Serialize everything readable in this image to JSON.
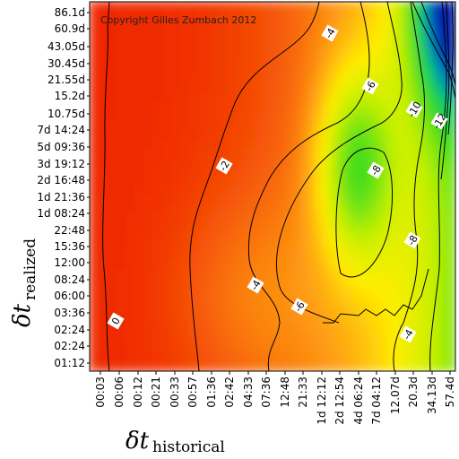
{
  "chart_data": {
    "type": "heatmap",
    "copyright": "Copyright Gilles Zumbach 2012",
    "xlabel": {
      "symbol": "δt",
      "subscript": "historical"
    },
    "ylabel": {
      "symbol": "δt",
      "subscript": "realized"
    },
    "x_ticks": [
      "00:03",
      "00:06",
      "00:12",
      "00:21",
      "00:33",
      "00:57",
      "01:36",
      "02:42",
      "04:33",
      "07:36",
      "12:48",
      "21:33",
      "1d 12:12",
      "2d 12:54",
      "4d 06:24",
      "7d 04:12",
      "12.07d",
      "20.3d",
      "34.13d",
      "57.4d"
    ],
    "y_ticks": [
      "86.1d",
      "60.9d",
      "43.05d",
      "30.45d",
      "21.55d",
      "15.2d",
      "10.75d",
      "7d 14:24",
      "5d 09:36",
      "3d 19:12",
      "2d 16:48",
      "1d 21:36",
      "1d 08:24",
      "22:48",
      "15:36",
      "12:00",
      "08:24",
      "06:00",
      "03:36",
      "02:24",
      "02:24",
      "01:12"
    ],
    "contour_levels": [
      0,
      -2,
      -4,
      -6,
      -8,
      -10,
      -12
    ],
    "contour_labels": [
      "0",
      "-2",
      "-4",
      "-4",
      "-4",
      "-6",
      "-6",
      "-8",
      "-8",
      "-10",
      "-12"
    ],
    "colorscale": {
      "high": "#ee2200",
      "mid": "#ffee00",
      "low_mid": "#22dd00",
      "low": "#0022aa"
    },
    "grid": false
  }
}
